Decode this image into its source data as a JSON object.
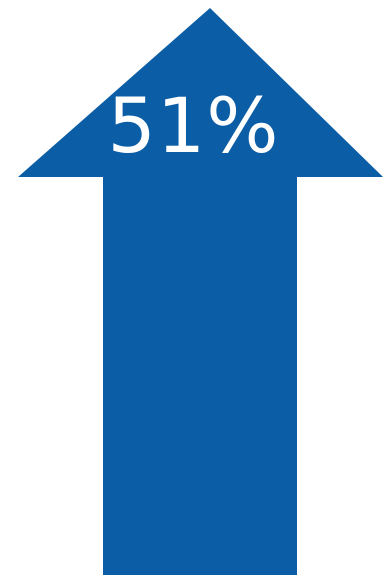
{
  "arrow": {
    "value_label": "51%",
    "direction": "up",
    "icon": "up-arrow-icon",
    "fill_color": "#0b5ea6",
    "text_color": "#ffffff"
  },
  "background_color": "#ffffff"
}
